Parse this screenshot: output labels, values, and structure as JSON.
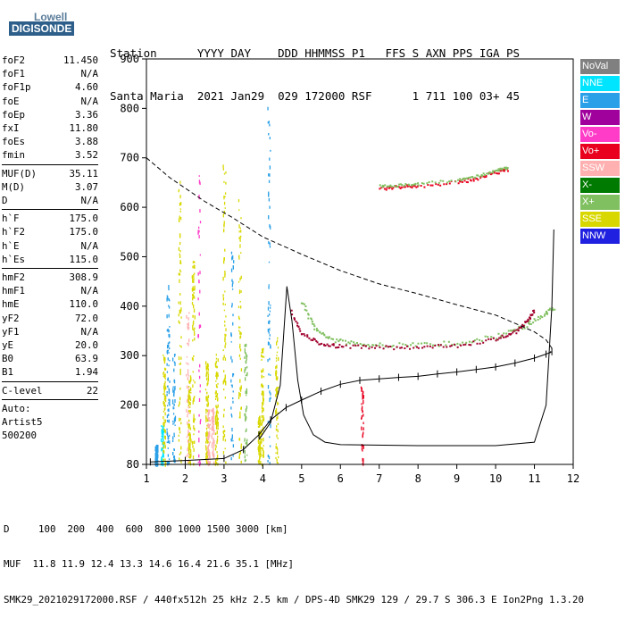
{
  "logo": {
    "line1": "Lowell",
    "line2": "DIGISONDE"
  },
  "header": {
    "labels": "Station      YYYY DAY    DDD HHMMSS P1   FFS S AXN PPS IGA PS",
    "values": "Santa Maria  2021 Jan29  029 172000 RSF      1 711 100 03+ 45"
  },
  "parameters": [
    {
      "group": 1,
      "items": [
        {
          "name": "foF2",
          "value": "11.450"
        },
        {
          "name": "foF1",
          "value": "N/A"
        },
        {
          "name": "foF1p",
          "value": "4.60"
        },
        {
          "name": "foE",
          "value": "N/A"
        },
        {
          "name": "foEp",
          "value": "3.36"
        },
        {
          "name": "fxI",
          "value": "11.80"
        },
        {
          "name": "foEs",
          "value": "3.88"
        },
        {
          "name": "fmin",
          "value": "3.52"
        }
      ]
    },
    {
      "group": 2,
      "items": [
        {
          "name": "MUF(D)",
          "value": "35.11"
        },
        {
          "name": "M(D)",
          "value": "3.07"
        },
        {
          "name": "D",
          "value": "N/A"
        }
      ]
    },
    {
      "group": 3,
      "items": [
        {
          "name": "h`F",
          "value": "175.0"
        },
        {
          "name": "h`F2",
          "value": "175.0"
        },
        {
          "name": "h`E",
          "value": "N/A"
        },
        {
          "name": "h`Es",
          "value": "115.0"
        }
      ]
    },
    {
      "group": 4,
      "items": [
        {
          "name": "hmF2",
          "value": "308.9"
        },
        {
          "name": "hmF1",
          "value": "N/A"
        },
        {
          "name": "hmE",
          "value": "110.0"
        },
        {
          "name": "yF2",
          "value": "72.0"
        },
        {
          "name": "yF1",
          "value": "N/A"
        },
        {
          "name": "yE",
          "value": "20.0"
        },
        {
          "name": "B0",
          "value": "63.9"
        },
        {
          "name": "B1",
          "value": "1.94"
        }
      ]
    },
    {
      "group": 5,
      "items": [
        {
          "name": "C-level",
          "value": "22"
        }
      ]
    }
  ],
  "auto": [
    "Auto:",
    "Artist5",
    "500200"
  ],
  "legend": [
    {
      "label": "NoVal",
      "color": "#808080"
    },
    {
      "label": "NNE",
      "color": "#00e5ff"
    },
    {
      "label": "E",
      "color": "#2aa0e8"
    },
    {
      "label": "W",
      "color": "#a0009c"
    },
    {
      "label": "Vo-",
      "color": "#ff3cc8"
    },
    {
      "label": "Vo+",
      "color": "#e8001e"
    },
    {
      "label": "SSW",
      "color": "#ffb0b0"
    },
    {
      "label": "X-",
      "color": "#007a00"
    },
    {
      "label": "X+",
      "color": "#80c060"
    },
    {
      "label": "SSE",
      "color": "#d8d800"
    },
    {
      "label": "NNW",
      "color": "#2020e0"
    }
  ],
  "footer": {
    "line1": "D     100  200  400  600  800 1000 1500 3000 [km]",
    "line2": "MUF  11.8 11.9 12.4 13.3 14.6 16.4 21.6 35.1 [MHz]",
    "line3": "SMK29_2021029172000.RSF / 440fx512h 25 kHz 2.5 km / DPS-4D SMK29 129 / 29.7 S 306.3 E Ion2Png 1.3.20"
  },
  "chart_data": {
    "type": "scatter",
    "xlim": [
      1,
      12
    ],
    "ylim": [
      80,
      900
    ],
    "x_ticks": [
      1,
      2,
      3,
      4,
      5,
      6,
      7,
      8,
      9,
      10,
      11,
      12
    ],
    "y_ticks": [
      80,
      200,
      300,
      400,
      500,
      600,
      700,
      800,
      900
    ],
    "grid": false,
    "series": [
      {
        "style": "solid-black",
        "points": [
          [
            3.9,
            130
          ],
          [
            4.2,
            165
          ],
          [
            4.45,
            240
          ],
          [
            4.62,
            440
          ],
          [
            4.75,
            370
          ],
          [
            4.9,
            250
          ],
          [
            5.05,
            180
          ],
          [
            5.3,
            140
          ],
          [
            5.6,
            125
          ],
          [
            6,
            120
          ],
          [
            8,
            118
          ],
          [
            10,
            118
          ],
          [
            11.0,
            125
          ],
          [
            11.3,
            200
          ],
          [
            11.45,
            400
          ],
          [
            11.5,
            555
          ]
        ]
      },
      {
        "style": "dashed-black",
        "points": [
          [
            1,
            700
          ],
          [
            1.6,
            660
          ],
          [
            2.5,
            612
          ],
          [
            3.2,
            580
          ],
          [
            4,
            540
          ],
          [
            5,
            505
          ],
          [
            6,
            472
          ],
          [
            7,
            445
          ],
          [
            8,
            425
          ],
          [
            9,
            403
          ],
          [
            10,
            382
          ],
          [
            10.6,
            362
          ],
          [
            11.0,
            348
          ],
          [
            11.3,
            332
          ],
          [
            11.45,
            315
          ],
          [
            11.4,
            305
          ]
        ]
      },
      {
        "style": "tick-curve",
        "points": [
          [
            1.1,
            85
          ],
          [
            2,
            88
          ],
          [
            3,
            92
          ],
          [
            3.5,
            110
          ],
          [
            3.9,
            140
          ],
          [
            4.2,
            170
          ],
          [
            4.6,
            195
          ],
          [
            5,
            210
          ],
          [
            5.5,
            228
          ],
          [
            6,
            242
          ],
          [
            6.5,
            250
          ],
          [
            7,
            253
          ],
          [
            7.5,
            256
          ],
          [
            8,
            258
          ],
          [
            8.5,
            263
          ],
          [
            9,
            267
          ],
          [
            9.5,
            272
          ],
          [
            10,
            277
          ],
          [
            10.5,
            285
          ],
          [
            11,
            295
          ],
          [
            11.3,
            303
          ],
          [
            11.45,
            308
          ]
        ]
      },
      {
        "style": "o-trace",
        "points": [
          [
            4.7,
            390
          ],
          [
            5,
            345
          ],
          [
            5.5,
            325
          ],
          [
            6,
            320
          ],
          [
            7,
            318
          ],
          [
            8,
            318
          ],
          [
            9,
            322
          ],
          [
            10,
            335
          ],
          [
            10.5,
            350
          ],
          [
            10.8,
            370
          ],
          [
            11,
            395
          ]
        ]
      },
      {
        "style": "x-trace",
        "points": [
          [
            5,
            410
          ],
          [
            5.3,
            360
          ],
          [
            5.7,
            335
          ],
          [
            6.3,
            326
          ],
          [
            7,
            323
          ],
          [
            8,
            323
          ],
          [
            9,
            328
          ],
          [
            10,
            340
          ],
          [
            10.7,
            360
          ],
          [
            11.2,
            382
          ],
          [
            11.5,
            400
          ]
        ]
      },
      {
        "style": "upper-trace",
        "points": [
          [
            7,
            640
          ],
          [
            7.5,
            642
          ],
          [
            8,
            645
          ],
          [
            9,
            652
          ],
          [
            9.5,
            660
          ],
          [
            10,
            672
          ],
          [
            10.3,
            678
          ]
        ]
      }
    ]
  }
}
